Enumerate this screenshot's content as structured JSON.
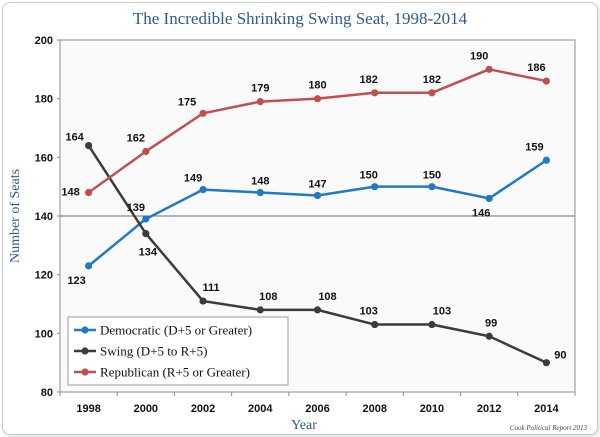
{
  "chart_data": {
    "type": "line",
    "title": "The Incredible Shrinking Swing Seat, 1998-2014",
    "xlabel": "Year",
    "ylabel": "Number of Seats",
    "x": [
      "1998",
      "2000",
      "2002",
      "2004",
      "2006",
      "2008",
      "2010",
      "2012",
      "2014"
    ],
    "ylim": [
      80,
      200
    ],
    "yticks": [
      80,
      100,
      120,
      140,
      160,
      180,
      200
    ],
    "reference_line": 140,
    "legend_position": "bottom-left",
    "credit": "Cook Political Report 2013",
    "series": [
      {
        "name": "Democratic (D+5 or Greater)",
        "color": "#1f78c8",
        "values": [
          123,
          139,
          149,
          148,
          147,
          150,
          150,
          146,
          159
        ]
      },
      {
        "name": "Swing (D+5 to R+5)",
        "color": "#3c3c3c",
        "values": [
          164,
          134,
          111,
          108,
          108,
          103,
          103,
          99,
          90
        ]
      },
      {
        "name": "Republican (R+5 or Greater)",
        "color": "#c0504d",
        "values": [
          148,
          162,
          175,
          179,
          180,
          182,
          182,
          190,
          186
        ]
      }
    ]
  }
}
